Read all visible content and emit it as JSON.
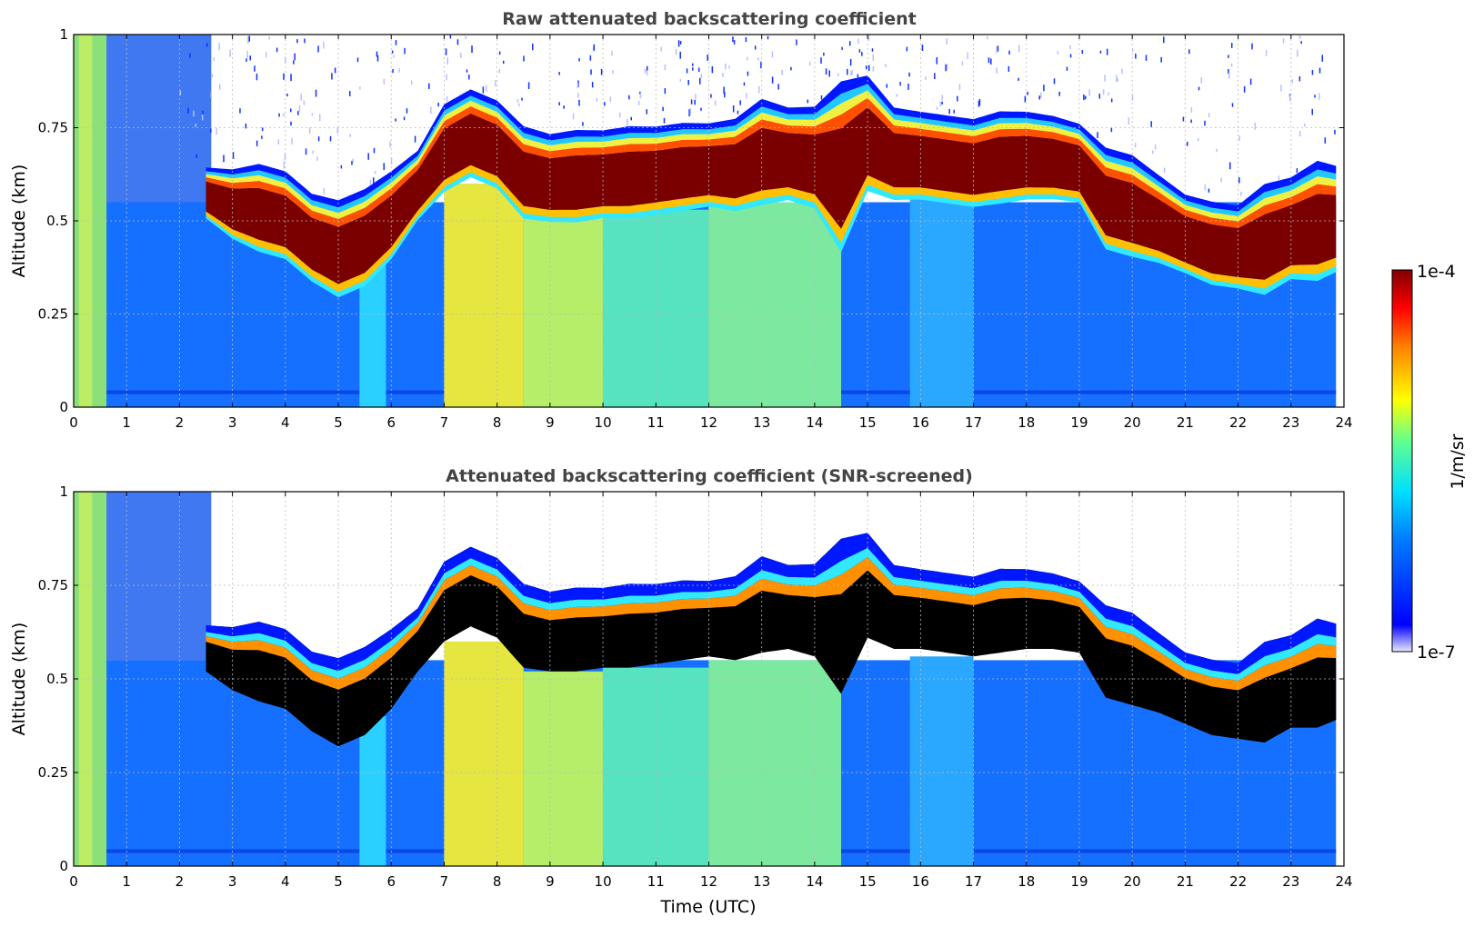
{
  "chart_data": [
    {
      "type": "heatmap",
      "title": "Raw attenuated backscattering coefficient",
      "xlabel": "",
      "ylabel": "Altitude (km)",
      "xlim": [
        0,
        24
      ],
      "ylim": [
        0,
        1
      ],
      "xticks": [
        "0",
        "1",
        "2",
        "3",
        "4",
        "5",
        "6",
        "7",
        "8",
        "9",
        "10",
        "11",
        "12",
        "13",
        "14",
        "15",
        "16",
        "17",
        "18",
        "19",
        "20",
        "21",
        "22",
        "23",
        "24"
      ],
      "yticks": [
        "0",
        "0.25",
        "0.5",
        "0.75",
        "1"
      ],
      "grid": true,
      "data_end_hour": 23.85,
      "cloud_layer": {
        "x": [
          2.5,
          3.0,
          3.5,
          4.0,
          4.5,
          5.0,
          5.5,
          6.0,
          6.5,
          7.0,
          7.5,
          8.0,
          8.5,
          9.0,
          9.5,
          10.0,
          10.5,
          11.0,
          11.5,
          12.0,
          12.5,
          13.0,
          13.5,
          14.0,
          14.5,
          15.0,
          15.5,
          16.0,
          16.5,
          17.0,
          17.5,
          18.0,
          18.5,
          19.0,
          19.5,
          20.0,
          20.5,
          21.0,
          21.5,
          22.0,
          22.5,
          23.0,
          23.5,
          23.85
        ],
        "base_km": [
          0.52,
          0.47,
          0.44,
          0.42,
          0.36,
          0.32,
          0.35,
          0.42,
          0.52,
          0.6,
          0.64,
          0.61,
          0.53,
          0.52,
          0.52,
          0.53,
          0.53,
          0.54,
          0.55,
          0.56,
          0.55,
          0.57,
          0.58,
          0.56,
          0.46,
          0.61,
          0.58,
          0.58,
          0.57,
          0.56,
          0.57,
          0.58,
          0.58,
          0.57,
          0.45,
          0.43,
          0.41,
          0.38,
          0.35,
          0.34,
          0.33,
          0.37,
          0.37,
          0.39
        ],
        "top_km": [
          0.63,
          0.62,
          0.63,
          0.61,
          0.55,
          0.53,
          0.56,
          0.61,
          0.67,
          0.79,
          0.83,
          0.8,
          0.73,
          0.71,
          0.72,
          0.72,
          0.73,
          0.73,
          0.74,
          0.74,
          0.75,
          0.8,
          0.78,
          0.78,
          0.83,
          0.86,
          0.78,
          0.77,
          0.76,
          0.75,
          0.77,
          0.77,
          0.76,
          0.74,
          0.67,
          0.65,
          0.6,
          0.55,
          0.53,
          0.52,
          0.57,
          0.59,
          0.63,
          0.62
        ]
      },
      "colorscale": "jet",
      "value_range": [
        "1e-7",
        "1e-4"
      ]
    },
    {
      "type": "heatmap",
      "title": "Attenuated backscattering coefficient (SNR-screened)",
      "xlabel": "Time (UTC)",
      "ylabel": "Altitude (km)",
      "xlim": [
        0,
        24
      ],
      "ylim": [
        0,
        1
      ],
      "xticks": [
        "0",
        "1",
        "2",
        "3",
        "4",
        "5",
        "6",
        "7",
        "8",
        "9",
        "10",
        "11",
        "12",
        "13",
        "14",
        "15",
        "16",
        "17",
        "18",
        "19",
        "20",
        "21",
        "22",
        "23",
        "24"
      ],
      "yticks": [
        "0",
        "0.25",
        "0.5",
        "0.75",
        "1"
      ],
      "grid": true,
      "saturated_color": "#000000"
    }
  ],
  "colorbar": {
    "max_label": "1e-4",
    "min_label": "1e-7",
    "unit_label": "1/m/sr",
    "scale": "log"
  }
}
